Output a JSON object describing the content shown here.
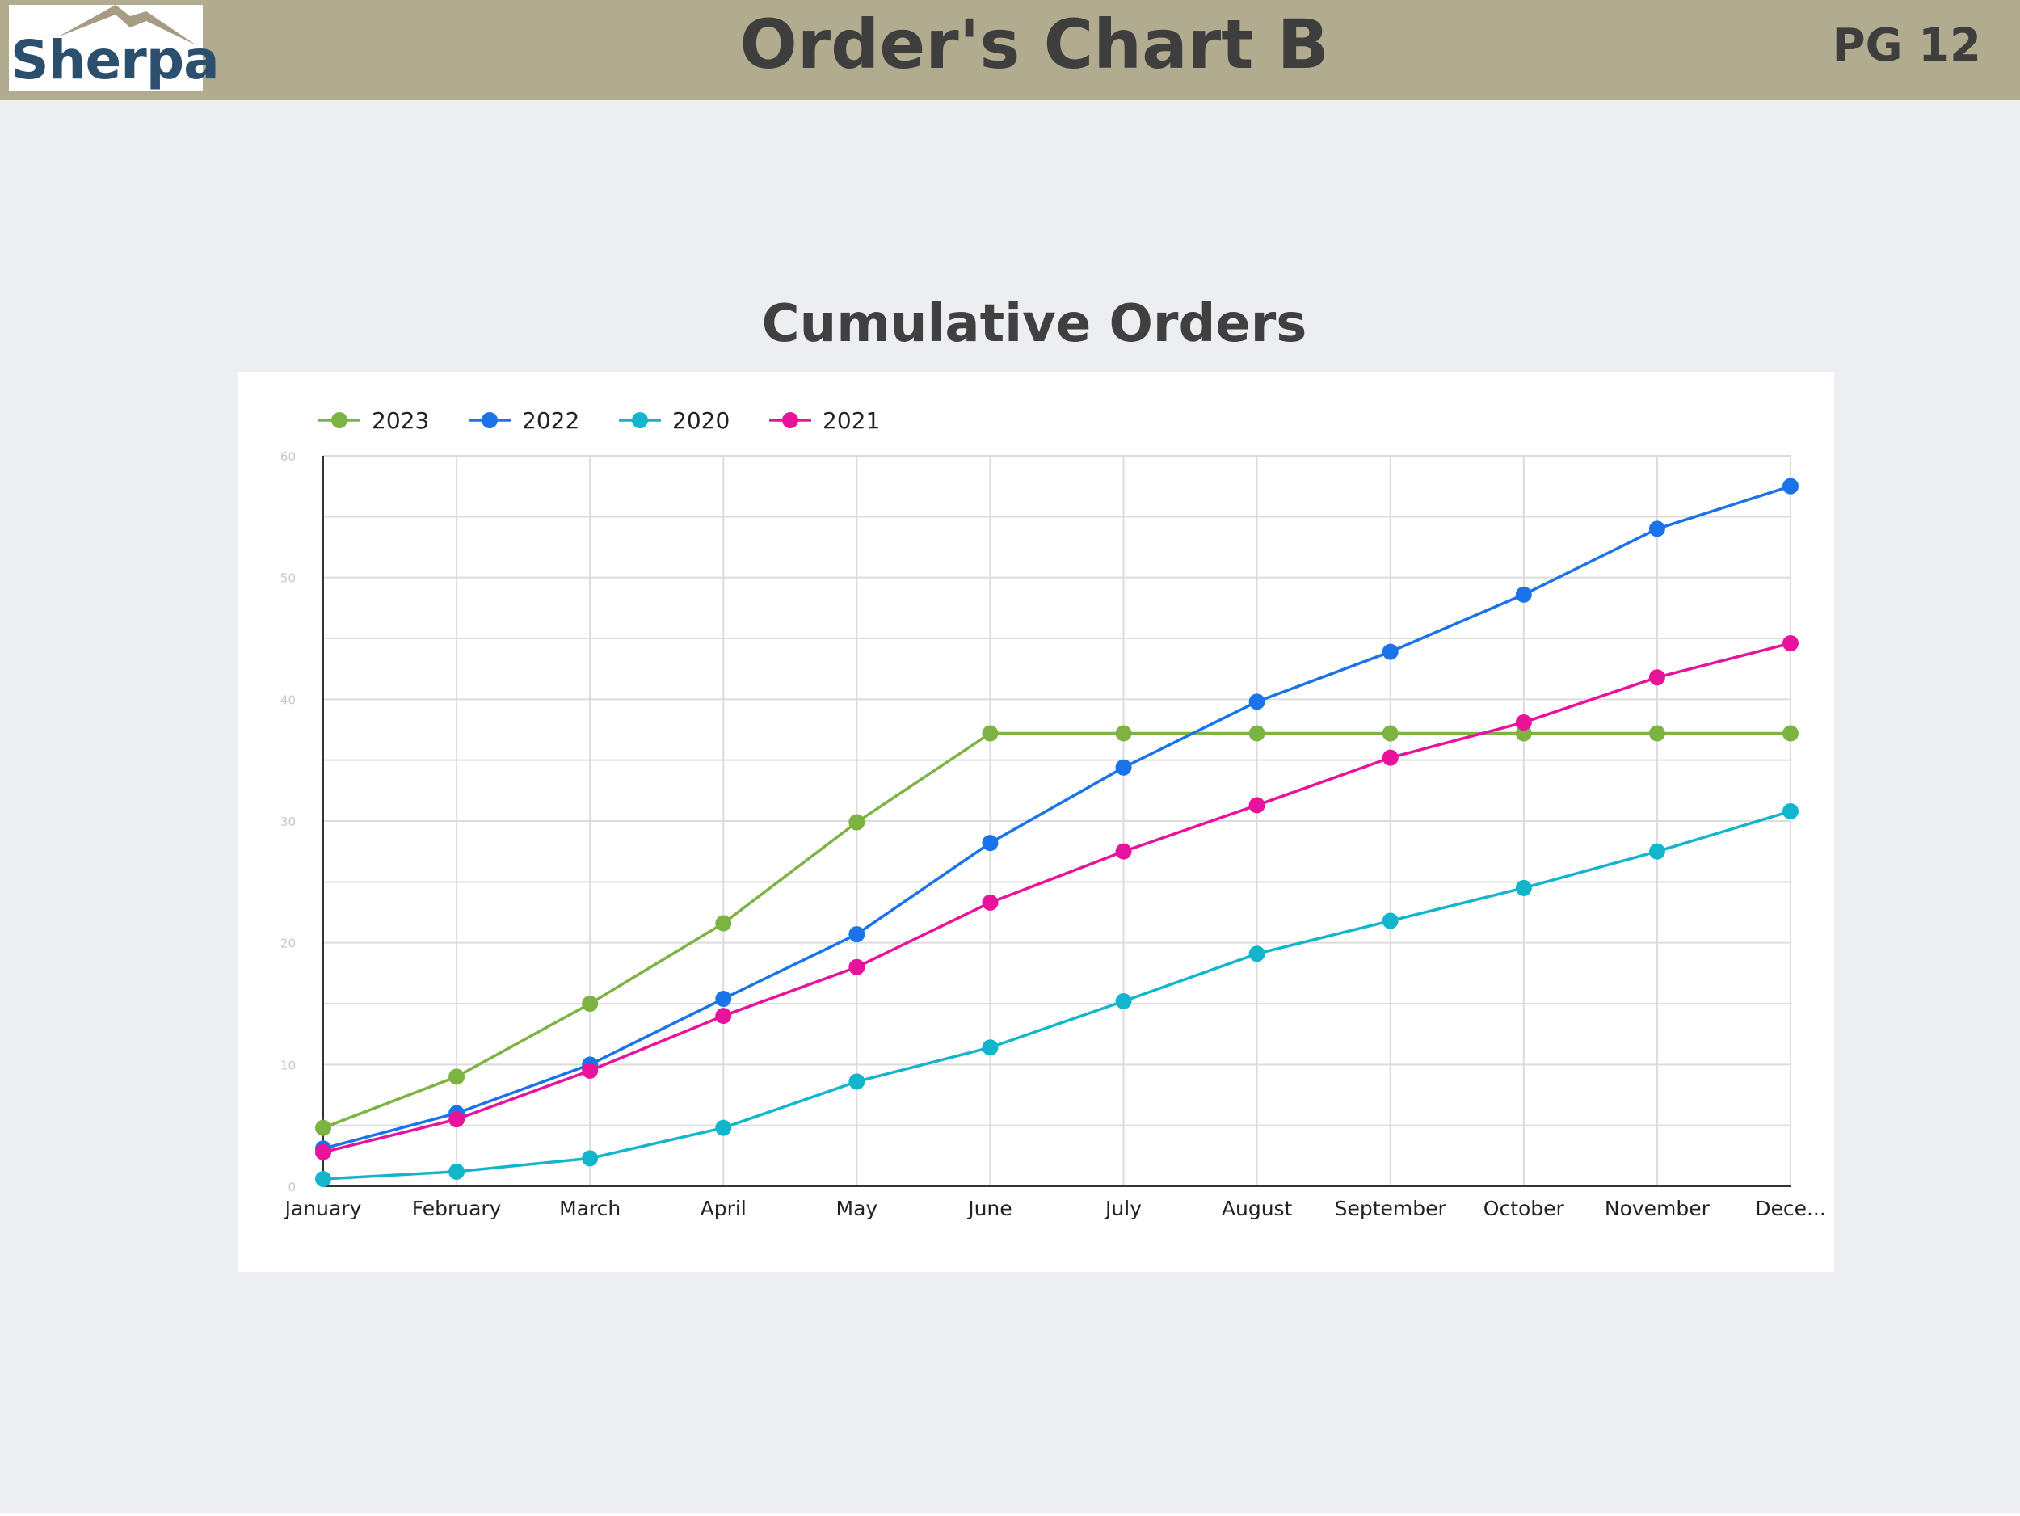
{
  "header": {
    "logo_text": "Sherpa",
    "title": "Order's Chart B",
    "page_number": "PG 12"
  },
  "colors": {
    "header_bg": "#b1ab8f",
    "page_bg": "#eceef1",
    "series_2023": "#7cb342",
    "series_2022": "#1a73e8",
    "series_2020": "#12b5cb",
    "series_2021": "#e8129b"
  },
  "chart_data": {
    "type": "line",
    "title": "Cumulative Orders",
    "xlabel": "",
    "ylabel": "",
    "categories": [
      "January",
      "February",
      "March",
      "April",
      "May",
      "June",
      "July",
      "August",
      "September",
      "October",
      "November",
      "Dece..."
    ],
    "ylim": [
      0,
      60
    ],
    "yticks": [
      0,
      10,
      20,
      30,
      40,
      50,
      60
    ],
    "grid": true,
    "legend": "top-left",
    "series": [
      {
        "name": "2023",
        "color": "#7cb342",
        "values": [
          4.8,
          9,
          15,
          21.6,
          29.9,
          37.2,
          37.2,
          37.2,
          37.2,
          37.2,
          37.2,
          37.2
        ]
      },
      {
        "name": "2022",
        "color": "#1a73e8",
        "values": [
          3.1,
          6,
          10,
          15.4,
          20.7,
          28.2,
          34.4,
          39.8,
          43.9,
          48.6,
          54,
          57.5
        ]
      },
      {
        "name": "2020",
        "color": "#12b5cb",
        "values": [
          0.6,
          1.2,
          2.3,
          4.8,
          8.6,
          11.4,
          15.2,
          19.1,
          21.8,
          24.5,
          27.5,
          30.8
        ]
      },
      {
        "name": "2021",
        "color": "#e8129b",
        "values": [
          2.8,
          5.5,
          9.5,
          14,
          18,
          23.3,
          27.5,
          31.3,
          35.2,
          38.1,
          41.8,
          44.6
        ]
      }
    ]
  }
}
